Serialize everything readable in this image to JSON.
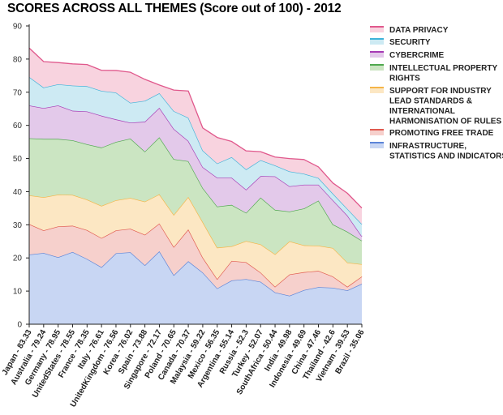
{
  "chart_data": {
    "type": "area",
    "stacked": true,
    "title": "SCORES ACROSS ALL THEMES (Score out of 100) - 2012",
    "ylim": [
      0,
      90
    ],
    "yticks": [
      0,
      10,
      20,
      30,
      40,
      50,
      60,
      70,
      80,
      90
    ],
    "grid": false,
    "legend_position": "right",
    "categories": [
      "Japan - 83.33",
      "Australia - 79.24",
      "Germany - 78.95",
      "UnitedStates - 78.55",
      "France - 78.35",
      "Italy - 76.61",
      "UnitedKingdom - 76.56",
      "Korea - 76.02",
      "Spain - 73.88",
      "Singapore - 72.17",
      "Poland - 70.65",
      "Canada - 70.37",
      "Malaysia - 59.22",
      "Mexico - 56.35",
      "Argentina - 55.14",
      "Russia - 52.3",
      "Turkey - 52.07",
      "SouthAfrica - 50.44",
      "India - 49.98",
      "Indonesia - 49.69",
      "China - 47.46",
      "Thailand - 42.6",
      "Vietnam - 39.53",
      "Brazil - 35.06"
    ],
    "legend_lines": [
      [
        "DATA PRIVACY"
      ],
      [
        "SECURITY"
      ],
      [
        "CYBERCRIME"
      ],
      [
        "INTELLECTUAL PROPERTY",
        "RIGHTS"
      ],
      [
        "SUPPORT FOR INDUSTRY",
        "LEAD STANDARDS &",
        "INTERNATIONAL",
        "HARMONISATION OF RULES"
      ],
      [
        "PROMOTING FREE TRADE"
      ],
      [
        "INFRASTRUCTURE,",
        "STATISTICS AND INDICATORS"
      ]
    ],
    "series": [
      {
        "name": "INFRASTRUCTURE, STATISTICS AND INDICATORS",
        "line_color": "#5b84d8",
        "fill_color": "#c8d6f3",
        "cumulative": [
          21.0,
          21.5,
          20.2,
          21.8,
          19.7,
          17.2,
          21.4,
          21.7,
          17.8,
          22.0,
          14.8,
          19.0,
          15.6,
          10.8,
          13.2,
          13.6,
          12.8,
          9.6,
          8.6,
          10.3,
          11.2,
          11.0,
          10.2,
          12.2
        ]
      },
      {
        "name": "PROMOTING FREE TRADE",
        "line_color": "#e05a4f",
        "fill_color": "#f6d0cc",
        "cumulative": [
          30.2,
          28.3,
          29.5,
          29.7,
          28.4,
          26.0,
          28.3,
          28.8,
          27.0,
          30.4,
          23.3,
          28.6,
          20.1,
          13.6,
          19.1,
          18.7,
          15.6,
          11.3,
          15.0,
          15.7,
          16.1,
          14.4,
          11.3,
          14.4
        ]
      },
      {
        "name": "SUPPORT FOR INDUSTRY LEAD STANDARDS & INTERNATIONAL HARMONISATION OF RULES",
        "line_color": "#f5b547",
        "fill_color": "#fce7c3",
        "cumulative": [
          38.9,
          38.3,
          39.1,
          39.0,
          37.6,
          35.7,
          37.4,
          38.1,
          37.0,
          39.2,
          33.0,
          38.4,
          30.8,
          23.1,
          23.5,
          25.1,
          24.1,
          21.1,
          25.0,
          23.8,
          23.7,
          23.0,
          18.6,
          18.1
        ]
      },
      {
        "name": "INTELLECTUAL PROPERTY RIGHTS",
        "line_color": "#4fa84e",
        "fill_color": "#cbe5c2",
        "cumulative": [
          56.1,
          55.9,
          55.9,
          55.5,
          54.3,
          53.3,
          55.0,
          56.0,
          52.1,
          56.4,
          49.8,
          49.2,
          41.1,
          35.5,
          36.0,
          33.6,
          38.2,
          34.5,
          34.0,
          34.9,
          37.3,
          30.1,
          27.9,
          25.2
        ]
      },
      {
        "name": "CYBERCRIME",
        "line_color": "#a63ab4",
        "fill_color": "#e3c9ea",
        "cumulative": [
          66.0,
          65.2,
          66.0,
          64.4,
          64.2,
          62.9,
          61.8,
          60.8,
          61.1,
          65.3,
          58.9,
          55.3,
          47.4,
          44.2,
          44.2,
          40.6,
          44.7,
          44.6,
          41.6,
          42.1,
          42.1,
          37.4,
          32.8,
          26.5
        ]
      },
      {
        "name": "SECURITY",
        "line_color": "#3fb3d9",
        "fill_color": "#cdeaf3",
        "cumulative": [
          74.6,
          71.4,
          72.4,
          72.0,
          71.8,
          70.4,
          69.9,
          66.8,
          67.4,
          69.7,
          64.3,
          62.3,
          52.4,
          48.5,
          50.4,
          46.7,
          49.5,
          47.9,
          46.1,
          45.4,
          44.1,
          39.4,
          34.8,
          30.2
        ]
      },
      {
        "name": "DATA PRIVACY",
        "line_color": "#e0588c",
        "fill_color": "#f8d3df",
        "cumulative": [
          83.33,
          79.24,
          78.95,
          78.55,
          78.35,
          76.61,
          76.56,
          76.02,
          73.88,
          72.17,
          70.65,
          70.37,
          59.22,
          56.35,
          55.14,
          52.3,
          52.07,
          50.44,
          49.98,
          49.69,
          47.46,
          42.6,
          39.53,
          35.06
        ]
      }
    ]
  }
}
